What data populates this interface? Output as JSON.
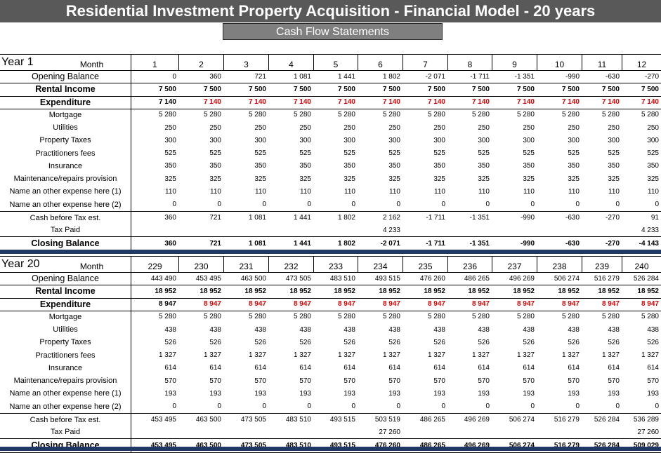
{
  "title": "Residential Investment Property Acquisition - Financial Model - 20 years",
  "subtitle": "Cash Flow Statements",
  "sections": [
    {
      "year_label": "Year 1",
      "month_label": "Month",
      "months": [
        "1",
        "2",
        "3",
        "4",
        "5",
        "6",
        "7",
        "8",
        "9",
        "10",
        "11",
        "12"
      ],
      "rows": [
        {
          "label": "Opening Balance",
          "style": "open",
          "values": [
            "0",
            "360",
            "721",
            "1 081",
            "1 441",
            "1 802",
            "-2 071",
            "-1 711",
            "-1 351",
            "-990",
            "-630",
            "-270"
          ]
        },
        {
          "label": "Rental Income",
          "style": "bold",
          "values": [
            "7 500",
            "7 500",
            "7 500",
            "7 500",
            "7 500",
            "7 500",
            "7 500",
            "7 500",
            "7 500",
            "7 500",
            "7 500",
            "7 500"
          ]
        },
        {
          "label": "Expenditure",
          "style": "exp",
          "values": [
            "7 140",
            "7 140",
            "7 140",
            "7 140",
            "7 140",
            "7 140",
            "7 140",
            "7 140",
            "7 140",
            "7 140",
            "7 140",
            "7 140"
          ]
        },
        {
          "label": "Mortgage",
          "style": "normal",
          "values": [
            "5 280",
            "5 280",
            "5 280",
            "5 280",
            "5 280",
            "5 280",
            "5 280",
            "5 280",
            "5 280",
            "5 280",
            "5 280",
            "5 280"
          ]
        },
        {
          "label": "Utilities",
          "style": "normal",
          "values": [
            "250",
            "250",
            "250",
            "250",
            "250",
            "250",
            "250",
            "250",
            "250",
            "250",
            "250",
            "250"
          ]
        },
        {
          "label": "Property Taxes",
          "style": "normal",
          "values": [
            "300",
            "300",
            "300",
            "300",
            "300",
            "300",
            "300",
            "300",
            "300",
            "300",
            "300",
            "300"
          ]
        },
        {
          "label": "Practitioners fees",
          "style": "normal",
          "values": [
            "525",
            "525",
            "525",
            "525",
            "525",
            "525",
            "525",
            "525",
            "525",
            "525",
            "525",
            "525"
          ]
        },
        {
          "label": "Insurance",
          "style": "normal",
          "values": [
            "350",
            "350",
            "350",
            "350",
            "350",
            "350",
            "350",
            "350",
            "350",
            "350",
            "350",
            "350"
          ]
        },
        {
          "label": "Maintenance/repairs provision",
          "style": "normal",
          "values": [
            "325",
            "325",
            "325",
            "325",
            "325",
            "325",
            "325",
            "325",
            "325",
            "325",
            "325",
            "325"
          ]
        },
        {
          "label": "Name an other expense here (1)",
          "style": "normal",
          "values": [
            "110",
            "110",
            "110",
            "110",
            "110",
            "110",
            "110",
            "110",
            "110",
            "110",
            "110",
            "110"
          ]
        },
        {
          "label": "Name an other expense here (2)",
          "style": "normal",
          "values": [
            "0",
            "0",
            "0",
            "0",
            "0",
            "0",
            "0",
            "0",
            "0",
            "0",
            "0",
            "0"
          ]
        },
        {
          "label": "Cash before Tax est.",
          "style": "cash",
          "values": [
            "360",
            "721",
            "1 081",
            "1 441",
            "1 802",
            "2 162",
            "-1 711",
            "-1 351",
            "-990",
            "-630",
            "-270",
            "91"
          ]
        },
        {
          "label": "Tax Paid",
          "style": "normal",
          "values": [
            "",
            "",
            "",
            "",
            "",
            "4 233",
            "",
            "",
            "",
            "",
            "",
            "4 233"
          ]
        },
        {
          "label": "Closing Balance",
          "style": "bold",
          "values": [
            "360",
            "721",
            "1 081",
            "1 441",
            "1 802",
            "-2 071",
            "-1 711",
            "-1 351",
            "-990",
            "-630",
            "-270",
            "-4 143"
          ]
        }
      ]
    },
    {
      "year_label": "Year 20",
      "month_label": "Month",
      "months": [
        "229",
        "230",
        "231",
        "232",
        "233",
        "234",
        "235",
        "236",
        "237",
        "238",
        "239",
        "240"
      ],
      "rows": [
        {
          "label": "Opening Balance",
          "style": "open",
          "values": [
            "443 490",
            "453 495",
            "463 500",
            "473 505",
            "483 510",
            "493 515",
            "476 260",
            "486 265",
            "496 269",
            "506 274",
            "516 279",
            "526 284"
          ]
        },
        {
          "label": "Rental Income",
          "style": "bold",
          "values": [
            "18 952",
            "18 952",
            "18 952",
            "18 952",
            "18 952",
            "18 952",
            "18 952",
            "18 952",
            "18 952",
            "18 952",
            "18 952",
            "18 952"
          ]
        },
        {
          "label": "Expenditure",
          "style": "exp",
          "values": [
            "8 947",
            "8 947",
            "8 947",
            "8 947",
            "8 947",
            "8 947",
            "8 947",
            "8 947",
            "8 947",
            "8 947",
            "8 947",
            "8 947"
          ]
        },
        {
          "label": "Mortgage",
          "style": "normal",
          "values": [
            "5 280",
            "5 280",
            "5 280",
            "5 280",
            "5 280",
            "5 280",
            "5 280",
            "5 280",
            "5 280",
            "5 280",
            "5 280",
            "5 280"
          ]
        },
        {
          "label": "Utilities",
          "style": "normal",
          "values": [
            "438",
            "438",
            "438",
            "438",
            "438",
            "438",
            "438",
            "438",
            "438",
            "438",
            "438",
            "438"
          ]
        },
        {
          "label": "Property Taxes",
          "style": "normal",
          "values": [
            "526",
            "526",
            "526",
            "526",
            "526",
            "526",
            "526",
            "526",
            "526",
            "526",
            "526",
            "526"
          ]
        },
        {
          "label": "Practitioners fees",
          "style": "normal",
          "values": [
            "1 327",
            "1 327",
            "1 327",
            "1 327",
            "1 327",
            "1 327",
            "1 327",
            "1 327",
            "1 327",
            "1 327",
            "1 327",
            "1 327"
          ]
        },
        {
          "label": "Insurance",
          "style": "normal",
          "values": [
            "614",
            "614",
            "614",
            "614",
            "614",
            "614",
            "614",
            "614",
            "614",
            "614",
            "614",
            "614"
          ]
        },
        {
          "label": "Maintenance/repairs provision",
          "style": "normal",
          "values": [
            "570",
            "570",
            "570",
            "570",
            "570",
            "570",
            "570",
            "570",
            "570",
            "570",
            "570",
            "570"
          ]
        },
        {
          "label": "Name an other expense here (1)",
          "style": "normal",
          "values": [
            "193",
            "193",
            "193",
            "193",
            "193",
            "193",
            "193",
            "193",
            "193",
            "193",
            "193",
            "193"
          ]
        },
        {
          "label": "Name an other expense here (2)",
          "style": "normal",
          "values": [
            "0",
            "0",
            "0",
            "0",
            "0",
            "0",
            "0",
            "0",
            "0",
            "0",
            "0",
            "0"
          ]
        },
        {
          "label": "Cash before Tax est.",
          "style": "cash",
          "values": [
            "453 495",
            "463 500",
            "473 505",
            "483 510",
            "493 515",
            "503 519",
            "486 265",
            "496 269",
            "506 274",
            "516 279",
            "526 284",
            "536 289"
          ]
        },
        {
          "label": "Tax Paid",
          "style": "normal",
          "values": [
            "",
            "",
            "",
            "",
            "",
            "27 260",
            "",
            "",
            "",
            "",
            "",
            "27 260"
          ]
        },
        {
          "label": "Closing Balance",
          "style": "bold",
          "values": [
            "453 495",
            "463 500",
            "473 505",
            "483 510",
            "493 515",
            "476 260",
            "486 265",
            "496 269",
            "506 274",
            "516 279",
            "526 284",
            "509 029"
          ]
        }
      ]
    }
  ]
}
